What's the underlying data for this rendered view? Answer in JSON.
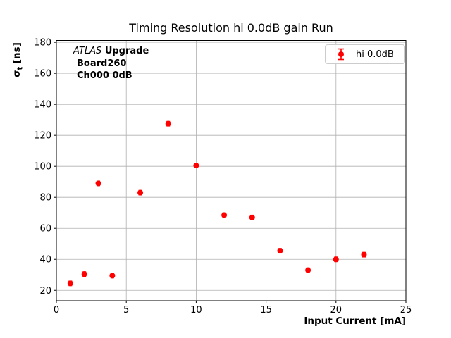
{
  "chart_data": {
    "type": "scatter",
    "title": "Timing Resolution hi 0.0dB gain Run",
    "xlabel": "Input Current [mA]",
    "ylabel": "σt [ns]",
    "xlim": [
      0,
      25
    ],
    "ylim": [
      13.3,
      181.2
    ],
    "xticks": [
      0,
      5,
      10,
      15,
      20,
      25
    ],
    "yticks": [
      20,
      40,
      60,
      80,
      100,
      120,
      140,
      160,
      180
    ],
    "grid": true,
    "legend": {
      "label": "hi 0.0dB",
      "position": "upper right"
    },
    "series": [
      {
        "name": "hi 0.0dB",
        "marker": "errorbar-dot",
        "color": "#ff0000",
        "x": [
          1,
          2,
          3,
          4,
          6,
          8,
          10,
          12,
          14,
          16,
          18,
          20,
          22
        ],
        "y": [
          24.5,
          30.5,
          89,
          29.5,
          83,
          127.5,
          100.5,
          68.5,
          67,
          45.5,
          33,
          40,
          43
        ],
        "yerr": [
          1.5,
          1.5,
          1.5,
          1.5,
          1.5,
          1.5,
          1.5,
          1.5,
          1.5,
          1.5,
          1.5,
          1.5,
          1.5
        ]
      }
    ]
  },
  "axes": {
    "ylabel_symbol": "σ",
    "ylabel_sub": "t",
    "ylabel_units": " [ns]"
  },
  "annotation": {
    "atlas": "ATLAS",
    "upgrade": "Upgrade",
    "line2": "Board260",
    "line3": "Ch000 0dB"
  },
  "colors": {
    "marker": "#ff0000",
    "grid": "#b0b0b0",
    "spine": "#000000",
    "legend_border": "#cccccc",
    "background": "#ffffff"
  }
}
